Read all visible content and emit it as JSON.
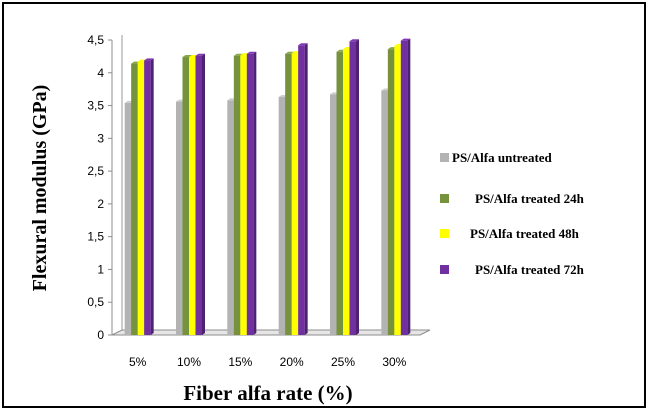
{
  "chart_data": {
    "type": "bar",
    "title": "",
    "xlabel": "Fiber alfa rate (%)",
    "ylabel": "Flexural modulus (GPa)",
    "categories": [
      "5%",
      "10%",
      "15%",
      "20%",
      "25%",
      "30%"
    ],
    "y_ticks": [
      "0",
      "0,5",
      "1",
      "1,5",
      "2",
      "2,5",
      "3",
      "3,5",
      "4",
      "4,5"
    ],
    "ylim": [
      0,
      4.5
    ],
    "grid": false,
    "legend_position": "right",
    "series": [
      {
        "name": "PS/Alfa untreated",
        "color": "#b3b3b3",
        "values": [
          3.54,
          3.56,
          3.58,
          3.63,
          3.67,
          3.73
        ]
      },
      {
        "name": "PS/Alfa treated 24h",
        "color": "#76923c",
        "values": [
          4.14,
          4.24,
          4.26,
          4.29,
          4.32,
          4.36
        ]
      },
      {
        "name": "PS/Alfa treated 48h",
        "color": "#ffff00",
        "values": [
          4.17,
          4.24,
          4.27,
          4.3,
          4.36,
          4.41
        ]
      },
      {
        "name": "PS/Alfa treated 72h",
        "color": "#7030a0",
        "values": [
          4.19,
          4.26,
          4.29,
          4.42,
          4.48,
          4.49
        ]
      }
    ]
  }
}
